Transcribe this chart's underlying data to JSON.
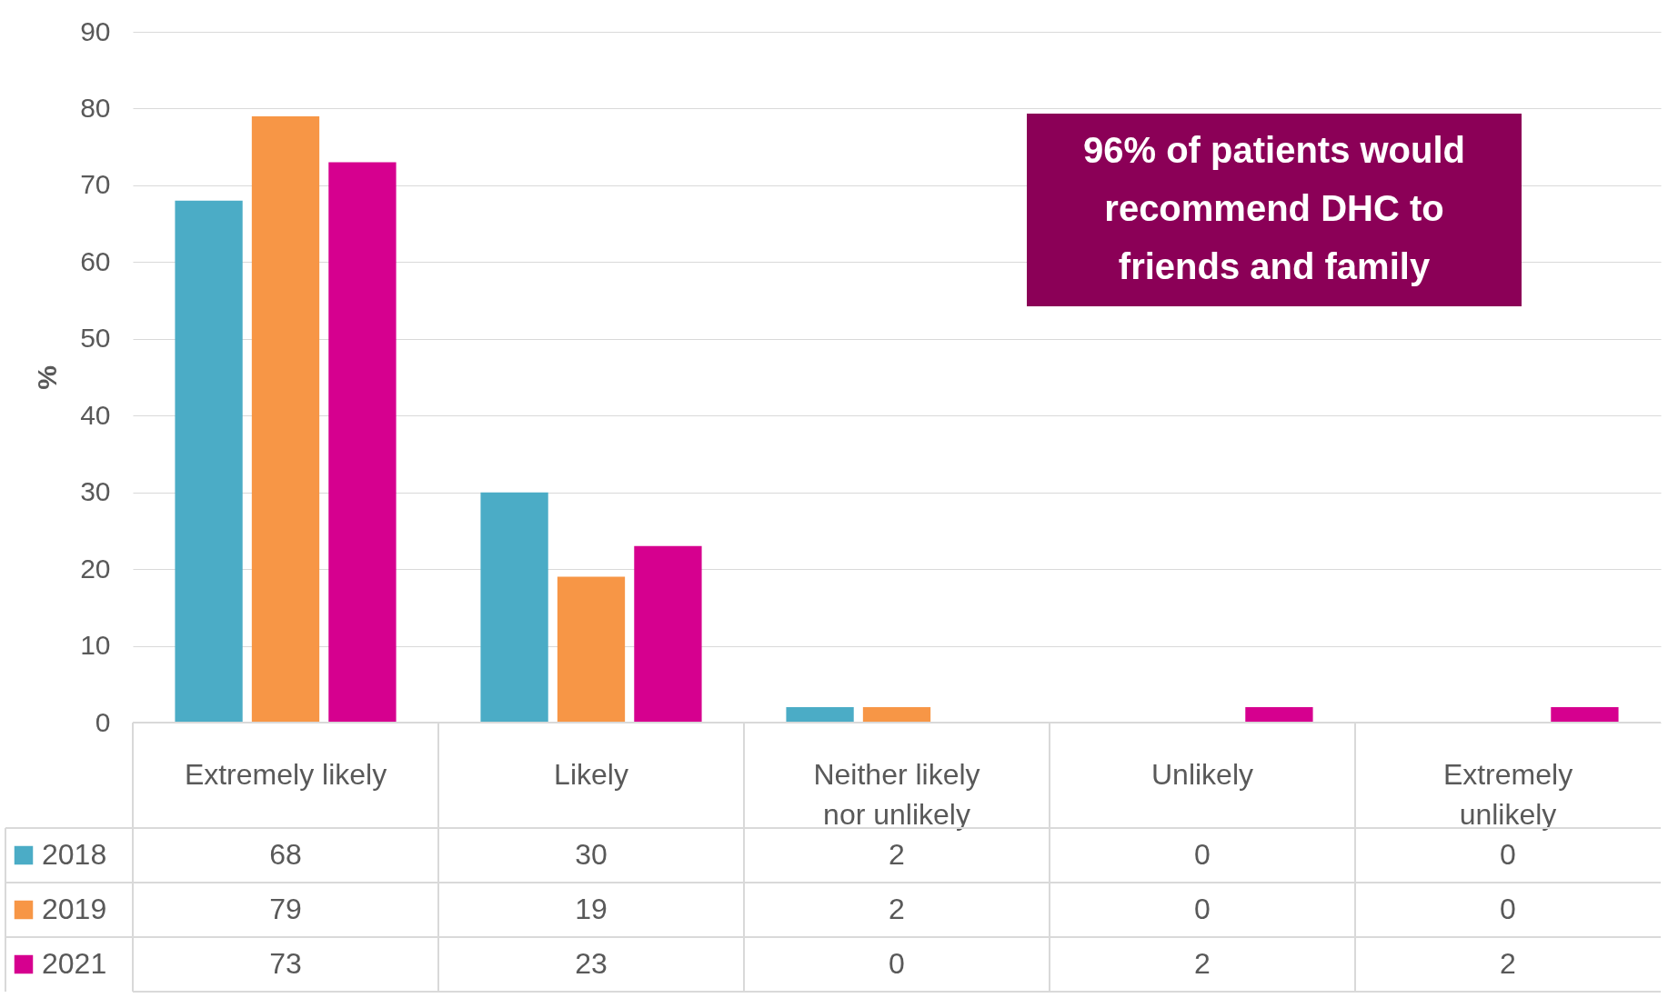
{
  "chart_data": {
    "type": "bar",
    "ylabel": "%",
    "categories": [
      "Extremely likely",
      "Likely",
      "Neither likely nor unlikely",
      "Unlikely",
      "Extremely unlikely"
    ],
    "series": [
      {
        "name": "2018",
        "color": "#4bacc6",
        "values": [
          68,
          30,
          2,
          0,
          0
        ]
      },
      {
        "name": "2019",
        "color": "#f79646",
        "values": [
          79,
          19,
          2,
          0,
          0
        ]
      },
      {
        "name": "2021",
        "color": "#d6008f",
        "values": [
          73,
          23,
          0,
          2,
          2
        ]
      }
    ],
    "ylim": [
      0,
      90
    ],
    "yticks": [
      0,
      10,
      20,
      30,
      40,
      50,
      60,
      70,
      80,
      90
    ],
    "grid": "y",
    "legend": "bottom left",
    "data_labels": true,
    "annotations": [
      "96% of patients would recommend DHC to friends and family"
    ]
  }
}
